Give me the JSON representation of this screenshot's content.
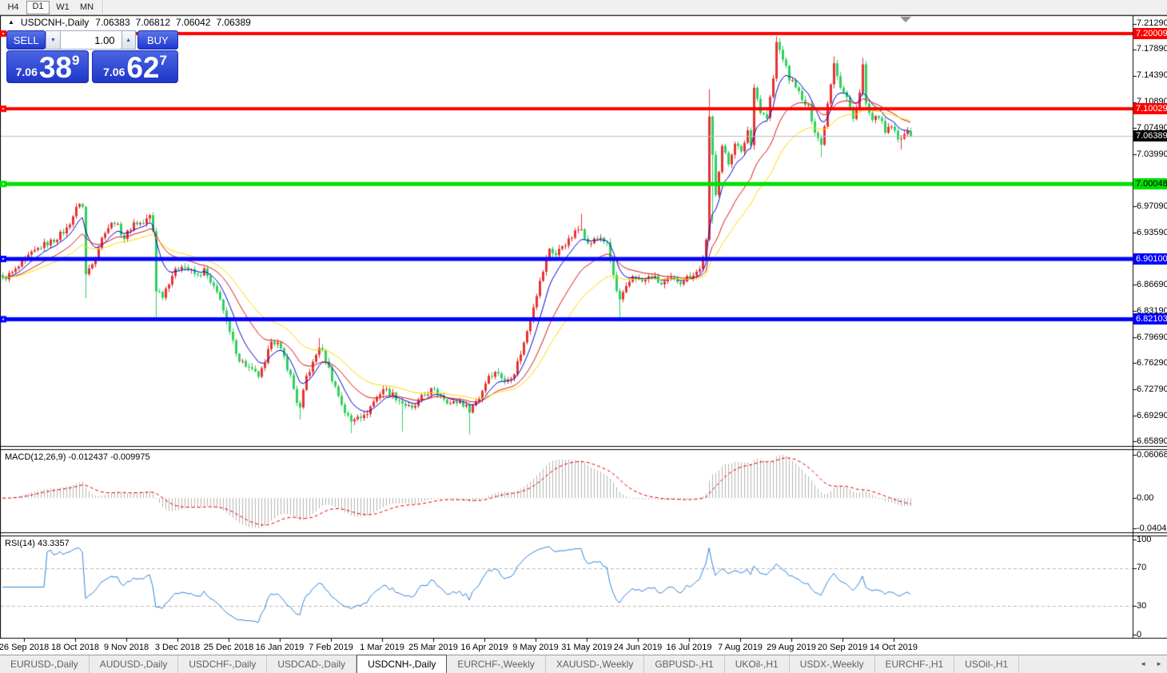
{
  "toolbar": {
    "items": [
      "H4",
      "D1",
      "W1",
      "MN"
    ],
    "active": "D1"
  },
  "title": {
    "collapse_icon": "▲",
    "symbol": "USDCNH-,Daily",
    "ohlc": [
      "7.06383",
      "7.06812",
      "7.06042",
      "7.06389"
    ]
  },
  "one_click": {
    "sell_label": "SELL",
    "buy_label": "BUY",
    "volume": "1.00",
    "sell_price": {
      "base": "7.06",
      "pips": "38",
      "pt": "9"
    },
    "buy_price": {
      "base": "7.06",
      "pips": "62",
      "pt": "7"
    },
    "spinner_down": "▼",
    "spinner_up": "▲"
  },
  "tabs": {
    "items": [
      "EURUSD-,Daily",
      "AUDUSD-,Daily",
      "USDCHF-,Daily",
      "USDCAD-,Daily",
      "USDCNH-,Daily",
      "EURCHF-,Weekly",
      "XAUUSD-,Weekly",
      "GBPUSD-,H1",
      "UKOil-,H1",
      "USDX-,Weekly",
      "EURCHF-,H1",
      "USOil-,H1"
    ],
    "active": "USDCNH-,Daily",
    "scroll_left_icon": "◄",
    "scroll_right_icon": "►"
  },
  "chart_data": {
    "type": "candlestick",
    "symbol": "USDCNH-,Daily",
    "bars": 285,
    "last_close": 7.06389,
    "up_color": "#e73333",
    "down_color": "#2fd05f",
    "close_waypoints": [
      [
        0,
        6.874
      ],
      [
        4,
        6.886
      ],
      [
        8,
        6.904
      ],
      [
        12,
        6.918
      ],
      [
        16,
        6.926
      ],
      [
        20,
        6.941
      ],
      [
        24,
        6.976
      ],
      [
        25,
        6.97
      ],
      [
        26,
        6.88
      ],
      [
        29,
        6.906
      ],
      [
        32,
        6.939
      ],
      [
        35,
        6.951
      ],
      [
        38,
        6.929
      ],
      [
        41,
        6.949
      ],
      [
        44,
        6.948
      ],
      [
        46,
        6.958
      ],
      [
        47,
        6.938
      ],
      [
        48,
        6.86
      ],
      [
        50,
        6.853
      ],
      [
        53,
        6.88
      ],
      [
        56,
        6.894
      ],
      [
        58,
        6.887
      ],
      [
        61,
        6.878
      ],
      [
        63,
        6.886
      ],
      [
        65,
        6.868
      ],
      [
        68,
        6.85
      ],
      [
        70,
        6.815
      ],
      [
        72,
        6.79
      ],
      [
        74,
        6.768
      ],
      [
        76,
        6.76
      ],
      [
        78,
        6.752
      ],
      [
        80,
        6.746
      ],
      [
        82,
        6.76
      ],
      [
        84,
        6.795
      ],
      [
        86,
        6.788
      ],
      [
        88,
        6.77
      ],
      [
        90,
        6.745
      ],
      [
        92,
        6.712
      ],
      [
        93,
        6.702
      ],
      [
        95,
        6.745
      ],
      [
        97,
        6.762
      ],
      [
        99,
        6.785
      ],
      [
        101,
        6.768
      ],
      [
        103,
        6.742
      ],
      [
        105,
        6.72
      ],
      [
        107,
        6.698
      ],
      [
        109,
        6.685
      ],
      [
        111,
        6.695
      ],
      [
        113,
        6.691
      ],
      [
        116,
        6.712
      ],
      [
        119,
        6.729
      ],
      [
        122,
        6.721
      ],
      [
        125,
        6.71
      ],
      [
        128,
        6.701
      ],
      [
        131,
        6.717
      ],
      [
        134,
        6.727
      ],
      [
        137,
        6.721
      ],
      [
        140,
        6.709
      ],
      [
        143,
        6.712
      ],
      [
        146,
        6.701
      ],
      [
        149,
        6.717
      ],
      [
        152,
        6.747
      ],
      [
        155,
        6.751
      ],
      [
        157,
        6.737
      ],
      [
        160,
        6.751
      ],
      [
        163,
        6.789
      ],
      [
        166,
        6.84
      ],
      [
        169,
        6.885
      ],
      [
        171,
        6.915
      ],
      [
        173,
        6.906
      ],
      [
        175,
        6.919
      ],
      [
        177,
        6.925
      ],
      [
        179,
        6.936
      ],
      [
        181,
        6.944
      ],
      [
        183,
        6.92
      ],
      [
        185,
        6.926
      ],
      [
        187,
        6.93
      ],
      [
        189,
        6.92
      ],
      [
        190,
        6.9
      ],
      [
        192,
        6.858
      ],
      [
        193,
        6.845
      ],
      [
        195,
        6.862
      ],
      [
        197,
        6.879
      ],
      [
        200,
        6.871
      ],
      [
        203,
        6.879
      ],
      [
        206,
        6.867
      ],
      [
        209,
        6.875
      ],
      [
        212,
        6.871
      ],
      [
        215,
        6.879
      ],
      [
        218,
        6.887
      ],
      [
        220,
        6.924
      ],
      [
        221,
        7.087
      ],
      [
        223,
        6.989
      ],
      [
        225,
        7.051
      ],
      [
        227,
        7.027
      ],
      [
        229,
        7.057
      ],
      [
        231,
        7.041
      ],
      [
        233,
        7.072
      ],
      [
        234,
        7.052
      ],
      [
        235,
        7.132
      ],
      [
        237,
        7.096
      ],
      [
        239,
        7.088
      ],
      [
        241,
        7.14
      ],
      [
        242,
        7.188
      ],
      [
        244,
        7.168
      ],
      [
        246,
        7.14
      ],
      [
        248,
        7.132
      ],
      [
        250,
        7.11
      ],
      [
        252,
        7.102
      ],
      [
        254,
        7.072
      ],
      [
        256,
        7.052
      ],
      [
        258,
        7.108
      ],
      [
        260,
        7.163
      ],
      [
        262,
        7.13
      ],
      [
        264,
        7.115
      ],
      [
        266,
        7.086
      ],
      [
        268,
        7.122
      ],
      [
        269,
        7.158
      ],
      [
        270,
        7.106
      ],
      [
        272,
        7.082
      ],
      [
        274,
        7.092
      ],
      [
        276,
        7.068
      ],
      [
        278,
        7.078
      ],
      [
        280,
        7.058
      ],
      [
        282,
        7.07
      ],
      [
        284,
        7.06389
      ]
    ],
    "spikes": [
      [
        26,
        6.849
      ],
      [
        48,
        6.824
      ],
      [
        93,
        6.688
      ],
      [
        99,
        6.796
      ],
      [
        109,
        6.67
      ],
      [
        125,
        6.672
      ],
      [
        146,
        6.668
      ],
      [
        181,
        6.961
      ],
      [
        193,
        6.818
      ],
      [
        221,
        7.126
      ],
      [
        222,
        6.948
      ],
      [
        235,
        7.046
      ],
      [
        242,
        7.1963
      ],
      [
        256,
        7.036
      ],
      [
        260,
        7.17
      ],
      [
        269,
        7.168
      ],
      [
        281,
        7.046
      ]
    ],
    "moving_averages": [
      {
        "period": 8,
        "color": "#0000cd"
      },
      {
        "period": 20,
        "color": "#dd1111"
      },
      {
        "period": 34,
        "color": "#ffd700"
      }
    ],
    "hlines": [
      {
        "price": 7.20009,
        "label": "7.20009",
        "color": "#ff0000",
        "text": "#ffffff",
        "width": 4
      },
      {
        "price": 7.10029,
        "label": "7.10029",
        "color": "#ff0000",
        "text": "#ffffff",
        "width": 4
      },
      {
        "price": 7.00048,
        "label": "7.00048",
        "color": "#00e000",
        "text": "#000000",
        "width": 5
      },
      {
        "price": 6.901,
        "label": "6.90100",
        "color": "#0000ff",
        "text": "#ffffff",
        "width": 5
      },
      {
        "price": 6.82103,
        "label": "6.82103",
        "color": "#0000ff",
        "text": "#ffffff",
        "width": 5
      }
    ],
    "current_price": {
      "value": 7.06389,
      "label": "7.06389",
      "chip_bg": "#000000",
      "chip_text": "#ffffff",
      "line_color": "#bdbdbd"
    },
    "price_ticks": [
      "7.21290",
      "7.17890",
      "7.14390",
      "7.10890",
      "7.07490",
      "7.03990",
      "6.97090",
      "6.93590",
      "6.86690",
      "6.83190",
      "6.79690",
      "6.76290",
      "6.72790",
      "6.69290",
      "6.65890"
    ],
    "macd": {
      "name": "MACD(12,26,9)",
      "values": "-0.012437 -0.009975",
      "fast": 12,
      "slow": 26,
      "signal": 9,
      "axis_max": "0.060687",
      "axis_zero": "0.00",
      "axis_min": "-0.040432",
      "hist_color": "#b4b4b4",
      "signal_color": "#e00000"
    },
    "rsi": {
      "name": "RSI(14)",
      "value": "43.3357",
      "period": 14,
      "axis": [
        "100",
        "70",
        "30",
        "0"
      ],
      "levels": [
        70,
        30
      ],
      "color": "#3385d6"
    },
    "dates": [
      "26 Sep 2018",
      "18 Oct 2018",
      "9 Nov 2018",
      "3 Dec 2018",
      "25 Dec 2018",
      "16 Jan 2019",
      "7 Feb 2019",
      "1 Mar 2019",
      "25 Mar 2019",
      "16 Apr 2019",
      "9 May 2019",
      "31 May 2019",
      "24 Jun 2019",
      "16 Jul 2019",
      "7 Aug 2019",
      "29 Aug 2019",
      "20 Sep 2019",
      "14 Oct 2019"
    ]
  }
}
